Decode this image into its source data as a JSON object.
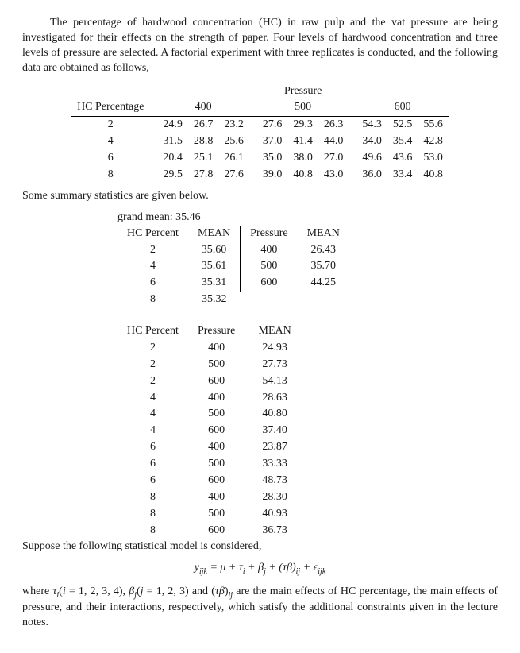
{
  "intro": "The percentage of hardwood concentration (HC) in raw pulp and the vat pressure are being investigated for their effects on the strength of paper. Four levels of hardwood concentration and three levels of pressure are selected. A factorial experiment with three replicates is conducted, and the following data are obtained as follows,",
  "main_table": {
    "top_header": "Pressure",
    "row_header": "HC Percentage",
    "pressure_levels": [
      "400",
      "500",
      "600"
    ],
    "hc_levels": [
      "2",
      "4",
      "6",
      "8"
    ],
    "rows": [
      [
        "24.9",
        "26.7",
        "23.2",
        "27.6",
        "29.3",
        "26.3",
        "54.3",
        "52.5",
        "55.6"
      ],
      [
        "31.5",
        "28.8",
        "25.6",
        "37.0",
        "41.4",
        "44.0",
        "34.0",
        "35.4",
        "42.8"
      ],
      [
        "20.4",
        "25.1",
        "26.1",
        "35.0",
        "38.0",
        "27.0",
        "49.6",
        "43.6",
        "53.0"
      ],
      [
        "29.5",
        "27.8",
        "27.6",
        "39.0",
        "40.8",
        "43.0",
        "36.0",
        "33.4",
        "40.8"
      ]
    ]
  },
  "summary_intro": "Some summary statistics are given below.",
  "grand_mean_label": "grand mean: 35.46",
  "hc_means": {
    "hc_header": "HC Percent",
    "mean_header": "MEAN",
    "rows": [
      [
        "2",
        "35.60"
      ],
      [
        "4",
        "35.61"
      ],
      [
        "6",
        "35.31"
      ],
      [
        "8",
        "35.32"
      ]
    ]
  },
  "pressure_means": {
    "p_header": "Pressure",
    "mean_header": "MEAN",
    "rows": [
      [
        "400",
        "26.43"
      ],
      [
        "500",
        "35.70"
      ],
      [
        "600",
        "44.25"
      ]
    ]
  },
  "cell_means": {
    "hc_header": "HC Percent",
    "p_header": "Pressure",
    "mean_header": "MEAN",
    "rows": [
      [
        "2",
        "400",
        "24.93"
      ],
      [
        "2",
        "500",
        "27.73"
      ],
      [
        "2",
        "600",
        "54.13"
      ],
      [
        "4",
        "400",
        "28.63"
      ],
      [
        "4",
        "500",
        "40.80"
      ],
      [
        "4",
        "600",
        "37.40"
      ],
      [
        "6",
        "400",
        "23.87"
      ],
      [
        "6",
        "500",
        "33.33"
      ],
      [
        "6",
        "600",
        "48.73"
      ],
      [
        "8",
        "400",
        "28.30"
      ],
      [
        "8",
        "500",
        "40.93"
      ],
      [
        "8",
        "600",
        "36.73"
      ]
    ]
  },
  "model_intro": "Suppose the following statistical model is considered,",
  "model_tail": " are the main effects of HC percentage, the main effects of pressure, and their interactions, respectively, which satisfy the additional constraints given in the lecture notes."
}
